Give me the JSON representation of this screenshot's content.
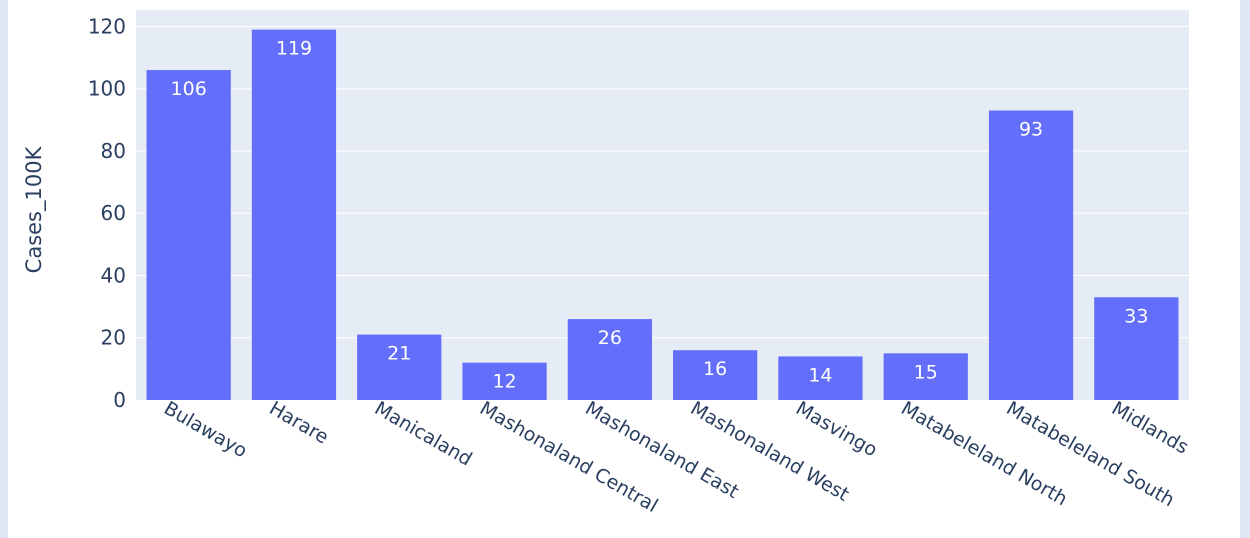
{
  "chart_data": {
    "type": "bar",
    "title": "",
    "xlabel": "",
    "ylabel": "Cases_100K",
    "categories": [
      "Bulawayo",
      "Harare",
      "Manicaland",
      "Mashonaland Central",
      "Mashonaland East",
      "Mashonaland West",
      "Masvingo",
      "Matabeleland North",
      "Matabeleland South",
      "Midlands"
    ],
    "values": [
      106,
      119,
      21,
      12,
      26,
      16,
      14,
      15,
      93,
      33
    ],
    "data_labels": [
      "106",
      "119",
      "21",
      "12",
      "26",
      "16",
      "14",
      "15",
      "93",
      "33"
    ],
    "yticks": [
      0,
      20,
      40,
      60,
      80,
      100,
      120
    ],
    "ytick_labels": [
      "0",
      "20",
      "40",
      "60",
      "80",
      "100",
      "120"
    ],
    "ylim": [
      0,
      125.3
    ],
    "grid": true,
    "colors": {
      "bar": "#636efa",
      "plot_bg": "#e5ecf6",
      "grid": "#ffffff",
      "text": "#2a3f5f",
      "label_inside": "#ffffff",
      "label_outside": "#2a3f5f"
    }
  }
}
